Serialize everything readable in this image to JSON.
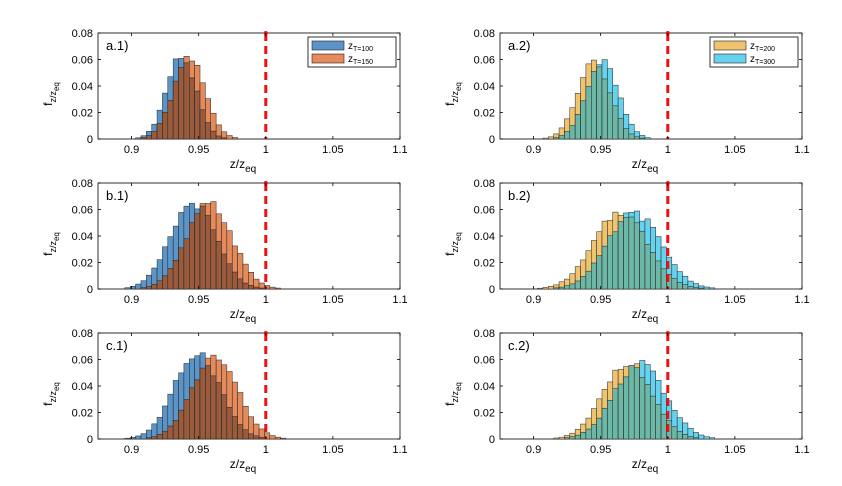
{
  "colors": {
    "blue": "#5b95c8",
    "orange": "#e58a5a",
    "blue_orange_overlap": "#9a5b3d",
    "gold": "#f0c36e",
    "cyan": "#66d2ee",
    "gold_cyan_overlap": "#6cb7a6",
    "threshold": "#ee1111"
  },
  "chart_data": [
    {
      "type": "bar",
      "panel_label": "a.1)",
      "xlabel": "z/z",
      "xlabel_sub": "eq",
      "ylabel": "f",
      "ylabel_sub": "z/z",
      "ylabel_subsub": "eq",
      "xlim": [
        0.875,
        1.1
      ],
      "ylim": [
        0,
        0.08
      ],
      "xticks": [
        "0.9",
        "0.95",
        "1",
        "1.05",
        "1.1"
      ],
      "yticks": [
        "0",
        "0.02",
        "0.04",
        "0.06",
        "0.08"
      ],
      "bin_width": 0.004,
      "threshold_x": 1,
      "legend": [
        {
          "base": "z",
          "sub": "T=100",
          "color": "blue"
        },
        {
          "base": "z",
          "sub": "T=150",
          "color": "orange"
        }
      ],
      "series": [
        {
          "name": "z_T=100",
          "color": "blue",
          "mean": 0.937,
          "sd": 0.011,
          "peak": 0.062
        },
        {
          "name": "z_T=150",
          "color": "orange",
          "mean": 0.943,
          "sd": 0.012,
          "peak": 0.06
        }
      ]
    },
    {
      "type": "bar",
      "panel_label": "a.2)",
      "xlabel": "z/z",
      "xlabel_sub": "eq",
      "ylabel": "f",
      "ylabel_sub": "z/z",
      "ylabel_subsub": "eq",
      "xlim": [
        0.875,
        1.1
      ],
      "ylim": [
        0,
        0.08
      ],
      "xticks": [
        "0.9",
        "0.95",
        "1",
        "1.05",
        "1.1"
      ],
      "yticks": [
        "0",
        "0.02",
        "0.04",
        "0.06",
        "0.08"
      ],
      "bin_width": 0.004,
      "threshold_x": 1,
      "legend": [
        {
          "base": "z",
          "sub": "T=200",
          "color": "gold"
        },
        {
          "base": "z",
          "sub": "T=300",
          "color": "cyan"
        }
      ],
      "series": [
        {
          "name": "z_T=200",
          "color": "gold",
          "mean": 0.945,
          "sd": 0.012,
          "peak": 0.06
        },
        {
          "name": "z_T=300",
          "color": "cyan",
          "mean": 0.951,
          "sd": 0.012,
          "peak": 0.058
        }
      ]
    },
    {
      "type": "bar",
      "panel_label": "b.1)",
      "xlabel": "z/z",
      "xlabel_sub": "eq",
      "ylabel": "f",
      "ylabel_sub": "z/z",
      "ylabel_subsub": "eq",
      "xlim": [
        0.875,
        1.1
      ],
      "ylim": [
        0,
        0.08
      ],
      "xticks": [
        "0.9",
        "0.95",
        "1",
        "1.05",
        "1.1"
      ],
      "yticks": [
        "0",
        "0.02",
        "0.04",
        "0.06",
        "0.08"
      ],
      "bin_width": 0.004,
      "threshold_x": 1,
      "legend": [],
      "series": [
        {
          "name": "z_T=100",
          "color": "blue",
          "mean": 0.946,
          "sd": 0.017,
          "peak": 0.065
        },
        {
          "name": "z_T=150",
          "color": "orange",
          "mean": 0.958,
          "sd": 0.017,
          "peak": 0.064
        }
      ]
    },
    {
      "type": "bar",
      "panel_label": "b.2)",
      "xlabel": "z/z",
      "xlabel_sub": "eq",
      "ylabel": "f",
      "ylabel_sub": "z/z",
      "ylabel_subsub": "eq",
      "xlim": [
        0.875,
        1.1
      ],
      "ylim": [
        0,
        0.08
      ],
      "xticks": [
        "0.9",
        "0.95",
        "1",
        "1.05",
        "1.1"
      ],
      "yticks": [
        "0",
        "0.02",
        "0.04",
        "0.06",
        "0.08"
      ],
      "bin_width": 0.004,
      "threshold_x": 1,
      "legend": [],
      "series": [
        {
          "name": "z_T=200",
          "color": "gold",
          "mean": 0.965,
          "sd": 0.02,
          "peak": 0.058
        },
        {
          "name": "z_T=300",
          "color": "cyan",
          "mean": 0.975,
          "sd": 0.02,
          "peak": 0.057
        }
      ]
    },
    {
      "type": "bar",
      "panel_label": "c.1)",
      "xlabel": "z/z",
      "xlabel_sub": "eq",
      "ylabel": "f",
      "ylabel_sub": "z/z",
      "ylabel_subsub": "eq",
      "xlim": [
        0.875,
        1.1
      ],
      "ylim": [
        0,
        0.08
      ],
      "xticks": [
        "0.9",
        "0.95",
        "1",
        "1.05",
        "1.1"
      ],
      "yticks": [
        "0",
        "0.02",
        "0.04",
        "0.06",
        "0.08"
      ],
      "bin_width": 0.004,
      "threshold_x": 1,
      "legend": [],
      "series": [
        {
          "name": "z_T=100",
          "color": "blue",
          "mean": 0.949,
          "sd": 0.017,
          "peak": 0.065
        },
        {
          "name": "z_T=150",
          "color": "orange",
          "mean": 0.962,
          "sd": 0.017,
          "peak": 0.062
        }
      ]
    },
    {
      "type": "bar",
      "panel_label": "c.2)",
      "xlabel": "z/z",
      "xlabel_sub": "eq",
      "ylabel": "f",
      "ylabel_sub": "z/z",
      "ylabel_subsub": "eq",
      "xlim": [
        0.875,
        1.1
      ],
      "ylim": [
        0,
        0.08
      ],
      "xticks": [
        "0.9",
        "0.95",
        "1",
        "1.05",
        "1.1"
      ],
      "yticks": [
        "0",
        "0.02",
        "0.04",
        "0.06",
        "0.08"
      ],
      "bin_width": 0.004,
      "threshold_x": 1,
      "legend": [],
      "series": [
        {
          "name": "z_T=200",
          "color": "gold",
          "mean": 0.97,
          "sd": 0.018,
          "peak": 0.058
        },
        {
          "name": "z_T=300",
          "color": "cyan",
          "mean": 0.979,
          "sd": 0.019,
          "peak": 0.057
        }
      ]
    }
  ]
}
